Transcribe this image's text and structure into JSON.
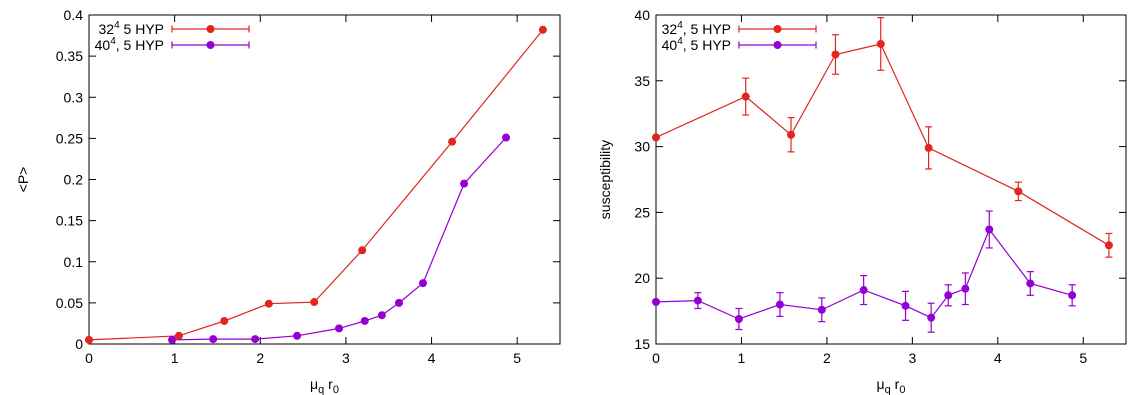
{
  "chart_data": [
    {
      "type": "scatter",
      "xlabel": {
        "base": "μ",
        "sub1": "q",
        "mid": " r",
        "sub2": "0"
      },
      "ylabel": "<P>",
      "xlim": [
        0,
        5.5
      ],
      "ylim": [
        0,
        0.4
      ],
      "xticks": [
        "0",
        "1",
        "2",
        "3",
        "4",
        "5"
      ],
      "yticks": [
        "0",
        "0.05",
        "0.1",
        "0.15",
        "0.2",
        "0.25",
        "0.3",
        "0.35",
        "0.4"
      ],
      "grid": false,
      "legend_position": "top-left",
      "series": [
        {
          "legend": {
            "base": "32",
            "sup": "4",
            "rest": " 5 HYP"
          },
          "color": "#e0261e",
          "x": [
            0,
            1.05,
            1.58,
            2.1,
            2.63,
            3.19,
            4.24,
            5.3
          ],
          "y": [
            0.005,
            0.01,
            0.028,
            0.049,
            0.051,
            0.114,
            0.246,
            0.382
          ]
        },
        {
          "legend": {
            "base": "40",
            "sup": "4",
            "rest": ", 5 HYP"
          },
          "color": "#9400d3",
          "x": [
            0.97,
            1.45,
            1.94,
            2.43,
            2.92,
            3.22,
            3.42,
            3.62,
            3.9,
            4.38,
            4.87
          ],
          "y": [
            0.005,
            0.006,
            0.006,
            0.01,
            0.019,
            0.028,
            0.035,
            0.05,
            0.074,
            0.195,
            0.251
          ]
        }
      ]
    },
    {
      "type": "scatter",
      "xlabel": {
        "base": "μ",
        "sub1": "q",
        "mid": " r",
        "sub2": "0"
      },
      "ylabel": "susceptibility",
      "xlim": [
        0,
        5.5
      ],
      "ylim": [
        15,
        40
      ],
      "xticks": [
        "0",
        "1",
        "2",
        "3",
        "4",
        "5"
      ],
      "yticks": [
        "15",
        "20",
        "25",
        "30",
        "35",
        "40"
      ],
      "grid": false,
      "legend_position": "top-left",
      "series": [
        {
          "legend": {
            "base": "32",
            "sup": "4",
            "rest": ", 5 HYP"
          },
          "color": "#e0261e",
          "x": [
            0,
            1.05,
            1.58,
            2.1,
            2.63,
            3.19,
            4.24,
            5.3
          ],
          "y": [
            30.7,
            33.8,
            30.9,
            37.0,
            37.8,
            29.9,
            26.6,
            22.5
          ],
          "err": [
            0.0,
            1.4,
            1.3,
            1.5,
            2.0,
            1.6,
            0.7,
            0.9
          ]
        },
        {
          "legend": {
            "base": "40",
            "sup": "4",
            "rest": ", 5 HYP"
          },
          "color": "#9400d3",
          "x": [
            0,
            0.49,
            0.97,
            1.45,
            1.94,
            2.43,
            2.92,
            3.22,
            3.42,
            3.62,
            3.9,
            4.38,
            4.87
          ],
          "y": [
            18.2,
            18.3,
            16.9,
            18.0,
            17.6,
            19.1,
            17.9,
            17.0,
            18.7,
            19.2,
            23.7,
            19.6,
            18.7
          ],
          "err": [
            0.0,
            0.6,
            0.8,
            0.9,
            0.9,
            1.1,
            1.1,
            1.1,
            0.8,
            1.2,
            1.4,
            0.9,
            0.8
          ]
        }
      ]
    }
  ]
}
